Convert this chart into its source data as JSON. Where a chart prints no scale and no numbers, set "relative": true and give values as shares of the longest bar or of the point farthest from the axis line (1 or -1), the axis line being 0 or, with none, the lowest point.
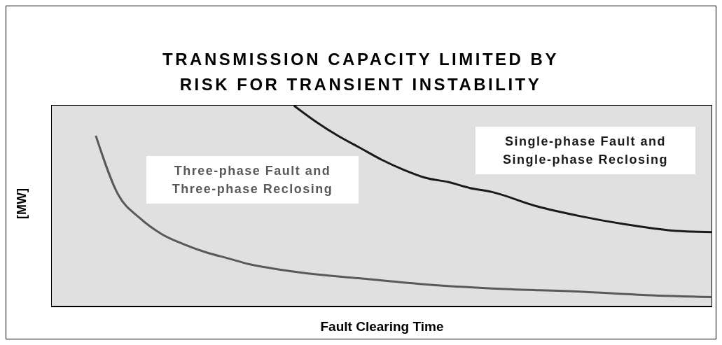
{
  "chart_data": {
    "type": "line",
    "title": "TRANSMISSION CAPACITY LIMITED BY RISK FOR TRANSIENT INSTABILITY",
    "xlabel": "Fault Clearing Time",
    "ylabel": "[MW]",
    "relative": true,
    "marker": "none",
    "line_style": "solid",
    "categories": [
      null,
      null,
      null,
      null,
      null,
      null,
      null,
      null,
      null,
      null,
      null,
      null,
      null,
      null,
      null,
      null,
      null,
      null,
      null,
      null,
      null,
      null,
      null,
      null,
      null,
      null,
      null,
      null,
      null,
      null,
      null
    ],
    "series": [
      {
        "name": "Three-phase Fault and Three-phase Reclosing",
        "color": "#595959",
        "values": [
          null,
          null,
          0.85,
          0.56,
          0.44,
          0.36,
          0.31,
          0.27,
          0.24,
          0.21,
          0.19,
          null,
          0.16,
          null,
          0.14,
          null,
          null,
          0.11,
          null,
          null,
          0.09,
          null,
          null,
          null,
          0.074,
          null,
          null,
          0.057,
          null,
          null,
          0.047
        ]
      },
      {
        "name": "Single-phase Fault and Single-phase Reclosing",
        "color": "#1a1a1a",
        "values": [
          null,
          null,
          null,
          null,
          null,
          null,
          null,
          null,
          null,
          null,
          null,
          1,
          0.92,
          0.85,
          0.79,
          0.73,
          0.68,
          0.64,
          0.62,
          0.59,
          0.57,
          null,
          0.5,
          null,
          0.45,
          null,
          0.41,
          null,
          0.38,
          null,
          0.37
        ]
      }
    ]
  }
}
